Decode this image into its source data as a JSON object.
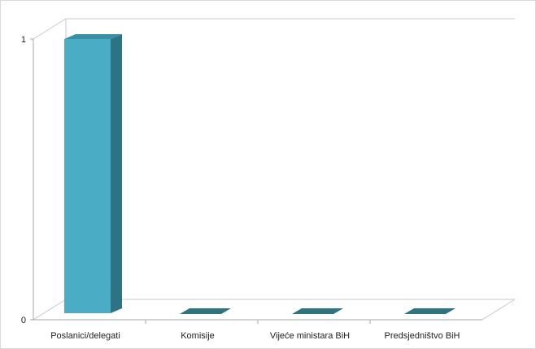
{
  "chart_data": {
    "type": "bar",
    "title": "",
    "xlabel": "",
    "ylabel": "",
    "categories": [
      "Poslanici/delegati",
      "Komisije",
      "Vijeće ministara BiH",
      "Predsjedništvo BiH"
    ],
    "values": [
      1,
      0,
      0,
      0
    ],
    "ylim": [
      0,
      1
    ],
    "yticks": [
      "0",
      "1"
    ],
    "grid": false,
    "legend": "none",
    "colors": {
      "front": "#4bacc6",
      "side": "#2e7384",
      "top": "#3a8ea3",
      "axis": "#a6a6a6",
      "walls": "#c8c8c8"
    }
  }
}
